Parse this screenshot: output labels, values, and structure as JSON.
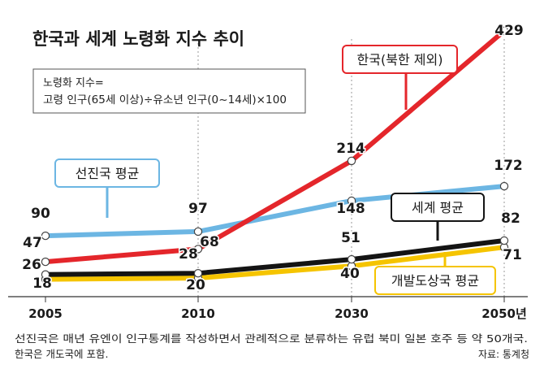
{
  "chart_data": {
    "type": "line",
    "title": "한국과 세계 노령화 지수 추이",
    "formula": {
      "line1": "노령화 지수=",
      "line2": "고령 인구(65세 이상)÷유소년 인구(0~14세)×100"
    },
    "categories": [
      "2005",
      "2010",
      "2030",
      "2050년"
    ],
    "ylim": [
      0,
      440
    ],
    "series": [
      {
        "name": "한국(북한 제외)",
        "values": [
          47,
          68,
          214,
          429
        ],
        "value_labels": [
          "47",
          "68",
          "214",
          "429"
        ],
        "color": "#e4262b"
      },
      {
        "name": "선진국 평균",
        "values": [
          90,
          97,
          148,
          172
        ],
        "value_labels": [
          "90",
          "97",
          "148",
          "172"
        ],
        "color": "#6cb6e3"
      },
      {
        "name": "세계 평균",
        "values": [
          26,
          28,
          51,
          82
        ],
        "value_labels": [
          "26",
          "28",
          "51",
          "82"
        ],
        "color": "#141414"
      },
      {
        "name": "개발도상국 평균",
        "values": [
          18,
          20,
          40,
          71
        ],
        "value_labels": [
          "18",
          "20",
          "40",
          "71"
        ],
        "color": "#f5c400"
      }
    ],
    "notes": [
      "선진국은 매년 유엔이 인구통계를 작성하면서 관례적으로 분류하는 유럽 북미 일본 호주 등 약 50개국.",
      "한국은 개도국에 포함."
    ],
    "source": "자료: 통계청"
  }
}
